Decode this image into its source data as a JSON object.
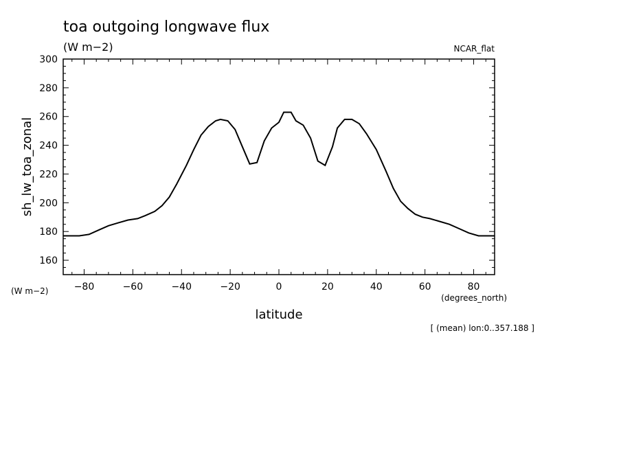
{
  "chart_data": {
    "type": "line",
    "title": "toa outgoing longwave flux",
    "subtitle": "(W m−2)",
    "dataset_label": "NCAR_flat",
    "ylabel": "sh_lw_toa_zonal",
    "yunits_label": "(W m−2)",
    "xlabel": "latitude",
    "xunits_label": "(degrees_north)",
    "footnote": "[ (mean) lon:0..357.188 ]",
    "xlim": [
      -88.6,
      88.6
    ],
    "ylim": [
      150,
      300
    ],
    "xticks": [
      -80,
      -60,
      -40,
      -20,
      0,
      20,
      40,
      60,
      80
    ],
    "xtick_labels": [
      "−80",
      "−60",
      "−40",
      "−20",
      "0",
      "20",
      "40",
      "60",
      "80"
    ],
    "yticks": [
      160,
      180,
      200,
      220,
      240,
      260,
      280,
      300
    ],
    "ytick_labels": [
      "160",
      "180",
      "200",
      "220",
      "240",
      "260",
      "280",
      "300"
    ],
    "grid": false,
    "series": [
      {
        "x": [
          -88.6,
          -82,
          -78,
          -74,
          -70,
          -66,
          -62,
          -58,
          -55,
          -51,
          -48,
          -45,
          -42,
          -38,
          -35,
          -32,
          -29,
          -26,
          -24,
          -21,
          -18,
          -15,
          -12,
          -9,
          -6,
          -3,
          0,
          2,
          5,
          7,
          10,
          13,
          16,
          19,
          22,
          24,
          27,
          30,
          33,
          36,
          40,
          44,
          47,
          50,
          53,
          56,
          59,
          62,
          66,
          70,
          74,
          78,
          82,
          88.6
        ],
        "y": [
          177,
          177,
          178,
          181,
          184,
          186,
          188,
          189,
          191,
          194,
          198,
          204,
          213,
          226,
          237,
          247,
          253,
          257,
          258,
          257,
          251,
          239,
          227,
          228,
          243,
          252,
          256,
          263,
          263,
          257,
          254,
          245,
          229,
          226,
          239,
          252,
          258,
          258,
          255,
          248,
          237,
          222,
          210,
          201,
          196,
          192,
          190,
          189,
          187,
          185,
          182,
          179,
          177,
          177
        ]
      }
    ]
  }
}
